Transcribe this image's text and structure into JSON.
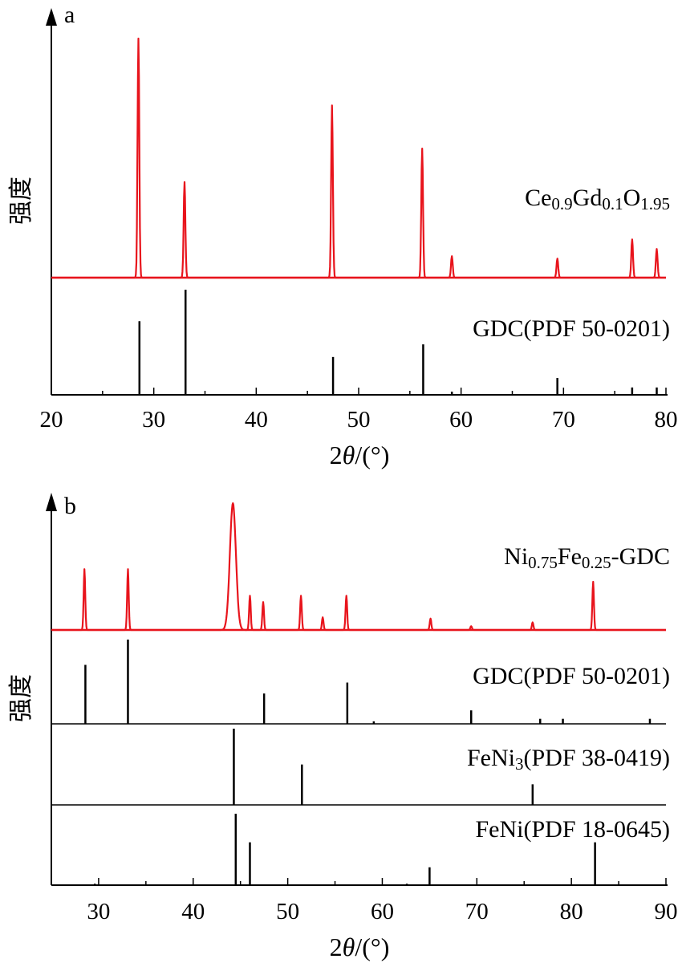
{
  "chart_data": [
    {
      "panel": "a",
      "type": "line",
      "xlabel": "2θ/(°)",
      "ylabel": "强度",
      "xlim": [
        20,
        80
      ],
      "xticks": [
        20,
        30,
        40,
        50,
        60,
        70,
        80
      ],
      "measured": {
        "name": "Ce0.9Gd0.1O1.95",
        "label_parts": [
          [
            "Ce",
            false
          ],
          [
            "0.9",
            true
          ],
          [
            "Gd",
            false
          ],
          [
            "0.1",
            true
          ],
          [
            "O",
            false
          ],
          [
            "1.95",
            true
          ]
        ],
        "color": "#e8141c",
        "peaks": [
          {
            "x": 28.5,
            "y": 100
          },
          {
            "x": 33.0,
            "y": 40
          },
          {
            "x": 47.4,
            "y": 72
          },
          {
            "x": 56.2,
            "y": 54
          },
          {
            "x": 59.1,
            "y": 9
          },
          {
            "x": 69.4,
            "y": 8
          },
          {
            "x": 76.7,
            "y": 16
          },
          {
            "x": 79.1,
            "y": 12
          }
        ]
      },
      "references": [
        {
          "name": "GDC(PDF 50-0201)",
          "label_parts": [
            [
              "GDC(PDF 50-0201)",
              false
            ]
          ],
          "color": "#000000",
          "sticks": [
            {
              "x": 28.6,
              "y": 70
            },
            {
              "x": 33.1,
              "y": 100
            },
            {
              "x": 47.5,
              "y": 36
            },
            {
              "x": 56.3,
              "y": 48
            },
            {
              "x": 59.1,
              "y": 3
            },
            {
              "x": 69.4,
              "y": 16
            },
            {
              "x": 76.7,
              "y": 7
            },
            {
              "x": 79.1,
              "y": 7
            }
          ]
        }
      ]
    },
    {
      "panel": "b",
      "type": "line",
      "xlabel": "2θ/(°)",
      "ylabel": "强度",
      "xlim": [
        25,
        90
      ],
      "xticks": [
        30,
        40,
        50,
        60,
        70,
        80,
        90
      ],
      "measured": {
        "name": "Ni0.75Fe0.25-GDC",
        "label_parts": [
          [
            "Ni",
            false
          ],
          [
            "0.75",
            true
          ],
          [
            "Fe",
            false
          ],
          [
            "0.25",
            true
          ],
          [
            "-GDC",
            false
          ]
        ],
        "color": "#e8141c",
        "peaks": [
          {
            "x": 28.5,
            "y": 48
          },
          {
            "x": 33.1,
            "y": 48
          },
          {
            "x": 44.2,
            "y": 100
          },
          {
            "x": 46.0,
            "y": 27
          },
          {
            "x": 47.4,
            "y": 22
          },
          {
            "x": 51.4,
            "y": 27
          },
          {
            "x": 53.7,
            "y": 10
          },
          {
            "x": 56.2,
            "y": 27
          },
          {
            "x": 65.1,
            "y": 9
          },
          {
            "x": 69.4,
            "y": 3
          },
          {
            "x": 75.9,
            "y": 6
          },
          {
            "x": 82.3,
            "y": 38
          }
        ]
      },
      "references": [
        {
          "name": "GDC(PDF 50-0201)",
          "label_parts": [
            [
              "GDC(PDF 50-0201)",
              false
            ]
          ],
          "color": "#000000",
          "sticks": [
            {
              "x": 28.6,
              "y": 70
            },
            {
              "x": 33.1,
              "y": 100
            },
            {
              "x": 47.5,
              "y": 36
            },
            {
              "x": 56.3,
              "y": 49
            },
            {
              "x": 59.1,
              "y": 3
            },
            {
              "x": 69.4,
              "y": 16
            },
            {
              "x": 76.7,
              "y": 6
            },
            {
              "x": 79.1,
              "y": 6
            },
            {
              "x": 88.3,
              "y": 6
            }
          ]
        },
        {
          "name": "FeNi3(PDF 38-0419)",
          "label_parts": [
            [
              "FeNi",
              false
            ],
            [
              "3",
              true
            ],
            [
              "(PDF 38-0419)",
              false
            ]
          ],
          "color": "#000000",
          "sticks": [
            {
              "x": 44.3,
              "y": 100
            },
            {
              "x": 51.5,
              "y": 53
            },
            {
              "x": 75.9,
              "y": 27
            }
          ]
        },
        {
          "name": "FeNi(PDF 18-0645)",
          "label_parts": [
            [
              "FeNi(PDF 18-0645)",
              false
            ]
          ],
          "color": "#000000",
          "sticks": [
            {
              "x": 29.6,
              "y": 2
            },
            {
              "x": 44.5,
              "y": 100
            },
            {
              "x": 46.0,
              "y": 60
            },
            {
              "x": 62.6,
              "y": 2
            },
            {
              "x": 65.0,
              "y": 25
            },
            {
              "x": 82.5,
              "y": 60
            }
          ]
        }
      ]
    }
  ]
}
